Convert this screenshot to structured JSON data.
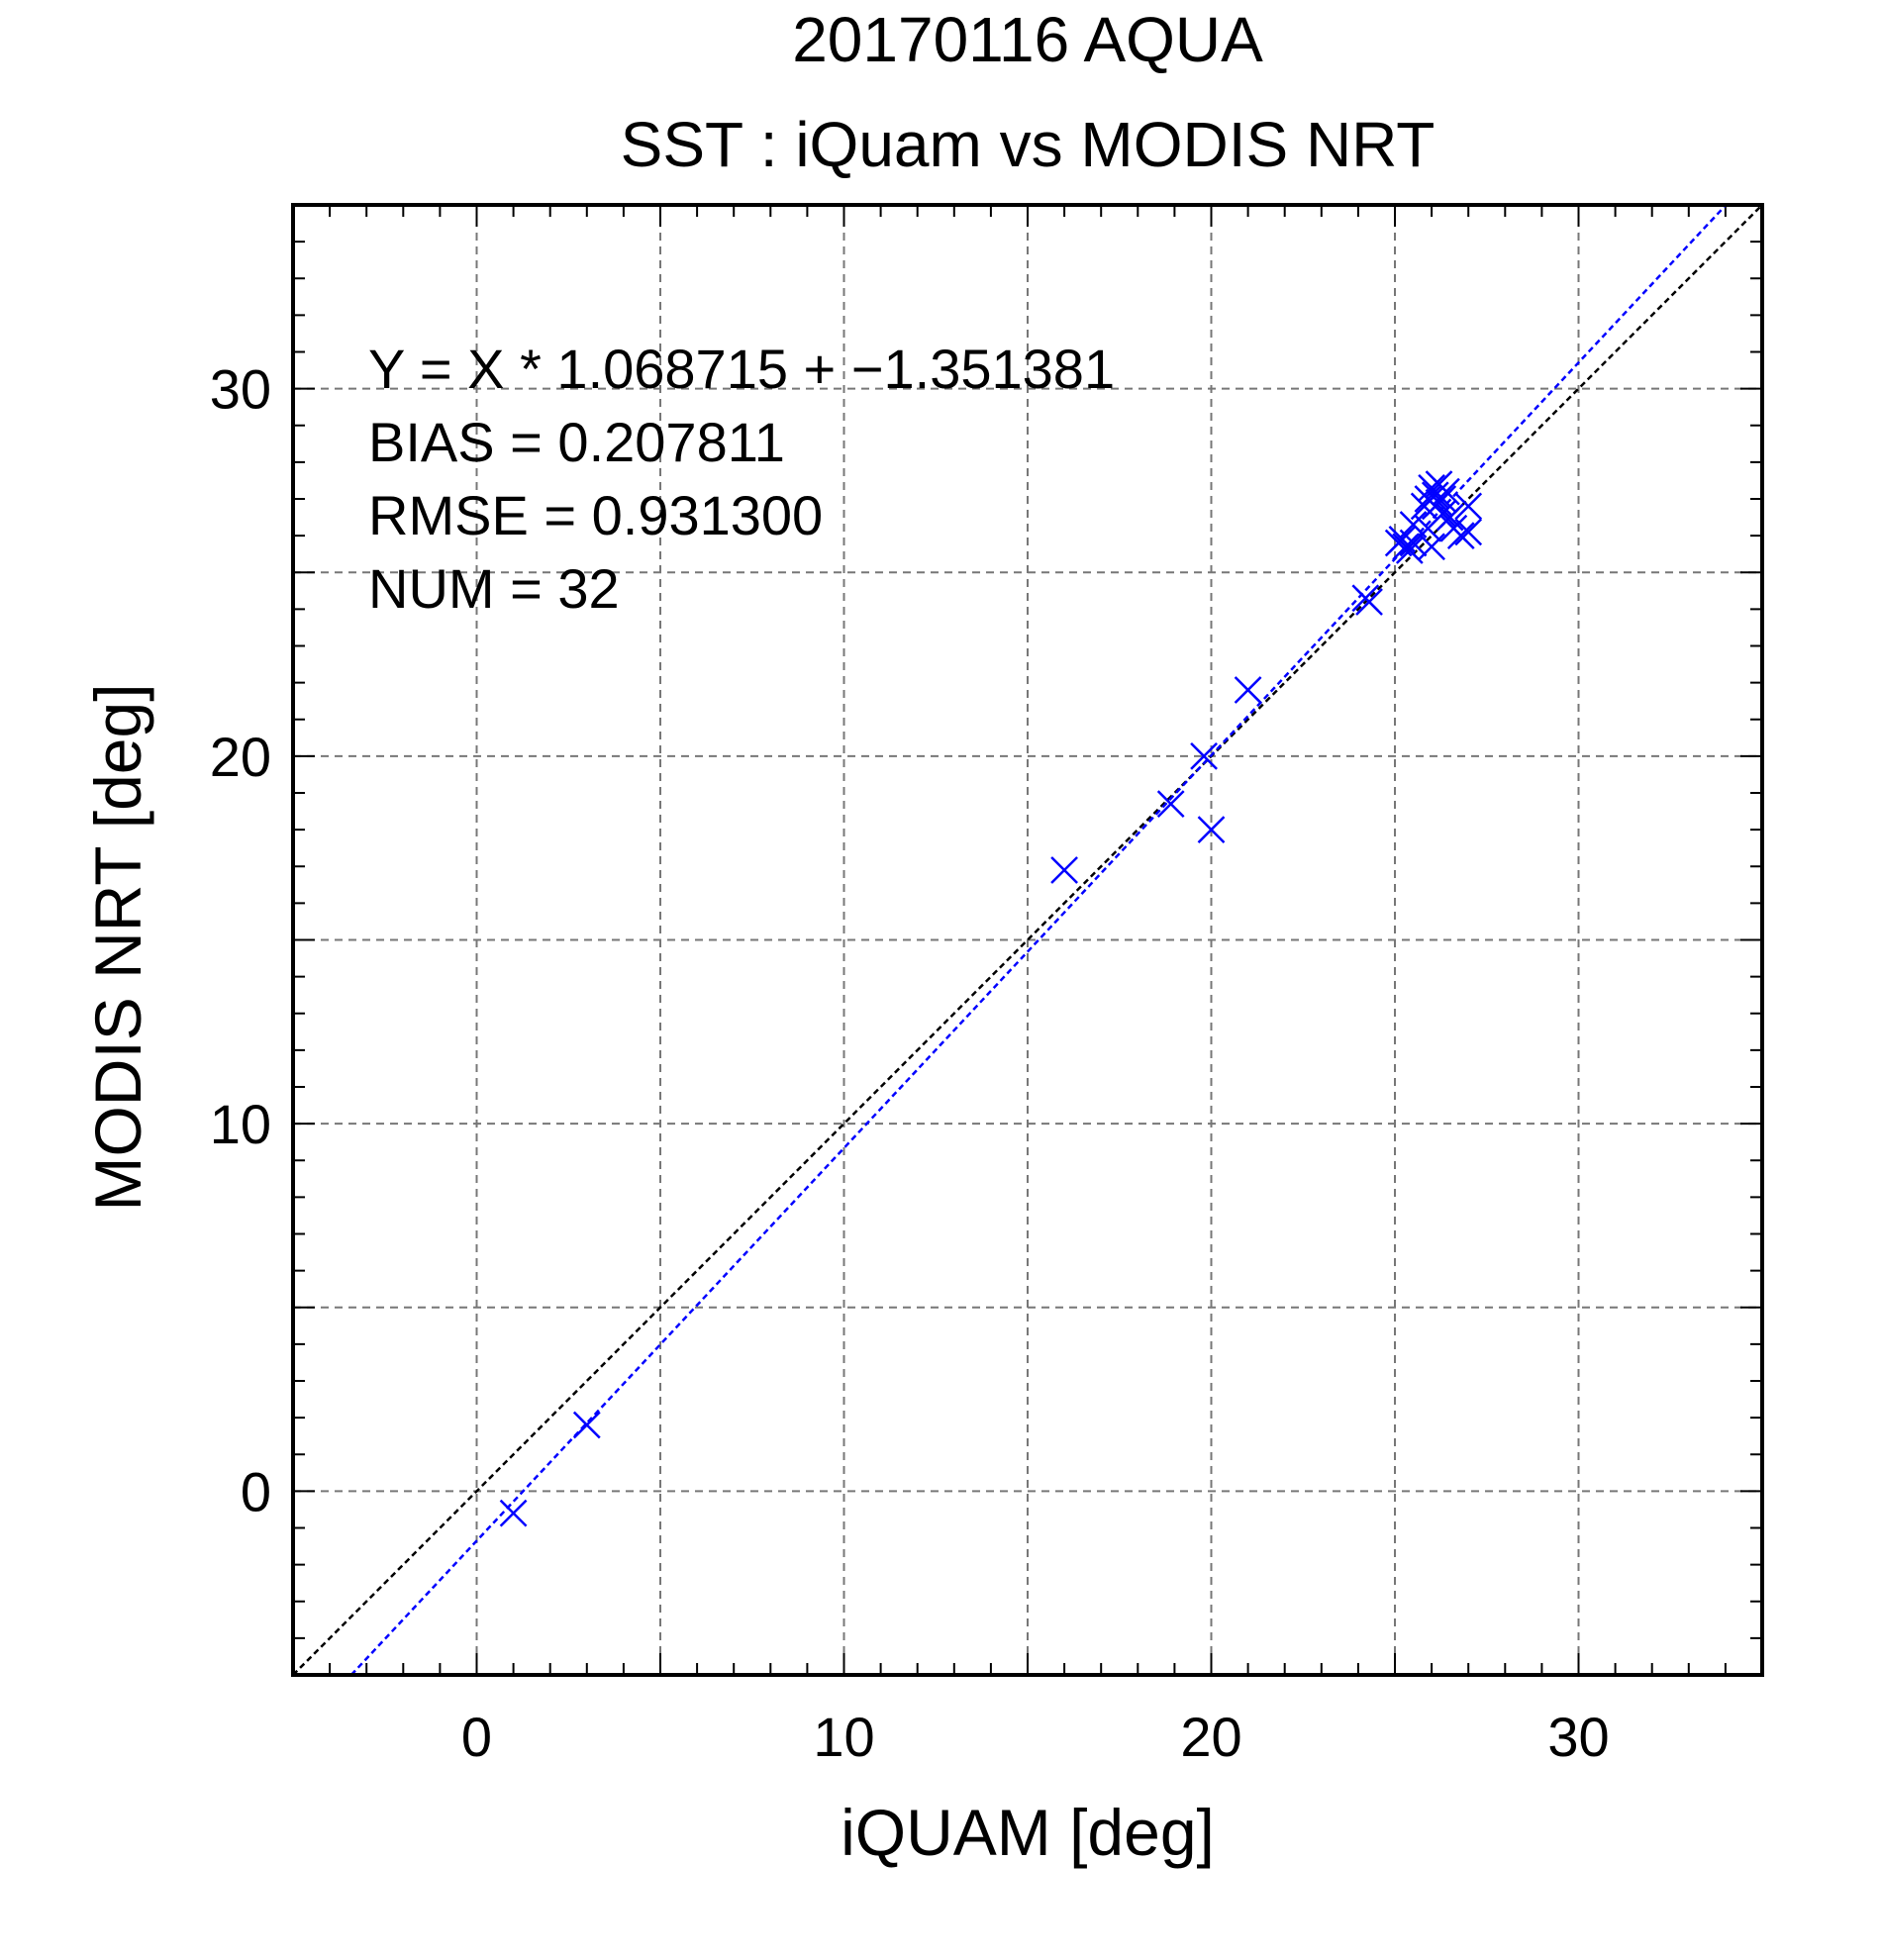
{
  "chart_data": {
    "type": "scatter",
    "title": "20170116 AQUA",
    "subtitle": "SST : iQuam vs MODIS NRT",
    "xlabel": "iQUAM [deg]",
    "ylabel": "MODIS NRT [deg]",
    "xlim": [
      -5,
      35
    ],
    "ylim": [
      -5,
      35
    ],
    "xticks": [
      0,
      10,
      20,
      30
    ],
    "yticks": [
      0,
      10,
      20,
      30
    ],
    "xtick_labels": [
      "0",
      "10",
      "20",
      "30"
    ],
    "ytick_labels": [
      "0",
      "10",
      "20",
      "30"
    ],
    "grid": true,
    "marker_color": "#0000ff",
    "fit_line_color": "#0000ff",
    "identity_line_color": "#000000",
    "fit": {
      "slope": 1.068715,
      "intercept": -1.351381
    },
    "stats": {
      "equation": "Y = X * 1.068715 + −1.351381",
      "bias": "BIAS = 0.207811",
      "rmse": "RMSE = 0.931300",
      "num": "NUM = 32"
    },
    "series": [
      {
        "points": [
          [
            1.0,
            -0.6
          ],
          [
            3.0,
            1.8
          ],
          [
            16.0,
            16.9
          ],
          [
            18.9,
            18.7
          ],
          [
            19.8,
            20.0
          ],
          [
            20.0,
            18.0
          ],
          [
            21.0,
            21.8
          ],
          [
            24.2,
            24.3
          ],
          [
            24.3,
            24.2
          ],
          [
            25.1,
            25.8
          ],
          [
            25.2,
            25.9
          ],
          [
            25.3,
            25.7
          ],
          [
            25.4,
            25.6
          ],
          [
            25.5,
            26.3
          ],
          [
            25.5,
            25.8
          ],
          [
            25.8,
            26.8
          ],
          [
            25.9,
            26.2
          ],
          [
            25.9,
            27.0
          ],
          [
            26.0,
            25.7
          ],
          [
            26.0,
            27.3
          ],
          [
            26.1,
            27.1
          ],
          [
            26.2,
            26.9
          ],
          [
            26.2,
            27.4
          ],
          [
            26.3,
            27.0
          ],
          [
            26.3,
            26.6
          ],
          [
            26.4,
            27.2
          ],
          [
            26.5,
            26.5
          ],
          [
            26.6,
            26.2
          ],
          [
            26.8,
            26.0
          ],
          [
            27.0,
            26.8
          ],
          [
            27.0,
            26.1
          ],
          [
            26.1,
            26.8
          ]
        ]
      }
    ]
  }
}
